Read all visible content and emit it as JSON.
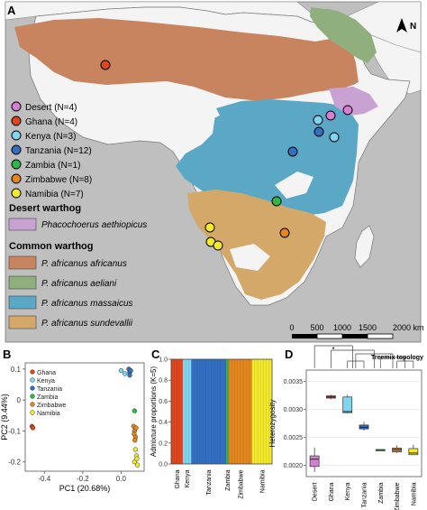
{
  "panels": {
    "a": "A",
    "b": "B",
    "c": "C",
    "d": "D"
  },
  "map": {
    "north_label": "N",
    "populations": [
      {
        "name": "Desert (N=4)",
        "color": "#d67fd3"
      },
      {
        "name": "Ghana (N=4)",
        "color": "#e0451e"
      },
      {
        "name": "Kenya (N=3)",
        "color": "#7fd6f0"
      },
      {
        "name": "Tanzania (N=12)",
        "color": "#3370c4"
      },
      {
        "name": "Zambia (N=1)",
        "color": "#2fb84a"
      },
      {
        "name": "Zimbabwe (N=8)",
        "color": "#e3871e"
      },
      {
        "name": "Namibia (N=7)",
        "color": "#f4ea2c"
      }
    ],
    "desert_heading": "Desert warthog",
    "desert_taxon": {
      "name": "Phacochoerus aethiopicus",
      "color": "#c8a2d2"
    },
    "common_heading": "Common warthog",
    "common_taxa": [
      {
        "name": "P. africanus africanus",
        "color": "#c8845e"
      },
      {
        "name": "P. africanus aeliani",
        "color": "#8fb07e"
      },
      {
        "name": "P. africanus massaicus",
        "color": "#5aa7c6"
      },
      {
        "name": "P. africanus sundevallii",
        "color": "#d4a868"
      }
    ],
    "scale_labels": [
      "0",
      "500",
      "1000",
      "1500",
      "2000 km"
    ]
  },
  "chart_data": [
    {
      "panel": "B",
      "type": "scatter",
      "xlabel": "PC1 (20.68%)",
      "ylabel": "PC2 (9.44%)",
      "xlim": [
        -0.5,
        0.12
      ],
      "ylim": [
        -0.23,
        0.12
      ],
      "xticks": [
        "-0.4",
        "-0.2",
        "0.0"
      ],
      "yticks": [
        "0.1",
        "0",
        "-0.1",
        "-0.2"
      ],
      "legend": [
        "Ghana",
        "Kenya",
        "Tanzania",
        "Zambia",
        "Zimbabwe",
        "Namibia"
      ],
      "series": [
        {
          "name": "Ghana",
          "color": "#e0451e",
          "points": [
            [
              -0.465,
              -0.085
            ],
            [
              -0.46,
              -0.09
            ]
          ]
        },
        {
          "name": "Kenya",
          "color": "#7fd6f0",
          "points": [
            [
              0.0,
              0.095
            ],
            [
              0.02,
              0.085
            ]
          ]
        },
        {
          "name": "Tanzania",
          "color": "#3370c4",
          "points": [
            [
              0.04,
              0.1
            ],
            [
              0.045,
              0.09
            ],
            [
              0.045,
              0.08
            ],
            [
              0.05,
              0.095
            ]
          ]
        },
        {
          "name": "Zambia",
          "color": "#2fb84a",
          "points": [
            [
              0.07,
              -0.035
            ]
          ]
        },
        {
          "name": "Zimbabwe",
          "color": "#e3871e",
          "points": [
            [
              0.065,
              -0.085
            ],
            [
              0.07,
              -0.1
            ],
            [
              0.068,
              -0.11
            ],
            [
              0.075,
              -0.12
            ],
            [
              0.072,
              -0.13
            ],
            [
              0.078,
              -0.09
            ]
          ]
        },
        {
          "name": "Namibia",
          "color": "#f4ea2c",
          "points": [
            [
              0.075,
              -0.16
            ],
            [
              0.08,
              -0.18
            ],
            [
              0.07,
              -0.2
            ],
            [
              0.085,
              -0.21
            ],
            [
              0.082,
              -0.19
            ]
          ]
        }
      ]
    },
    {
      "panel": "C",
      "type": "bar",
      "ylabel": "Admixture proportions (K=5)",
      "ylim": [
        0,
        1
      ],
      "yticks": [
        "0.0",
        "0.2",
        "0.4",
        "0.6",
        "0.8",
        "1.0"
      ],
      "groups": [
        {
          "name": "Ghana",
          "n": 4,
          "color": "#e0451e"
        },
        {
          "name": "Kenya",
          "n": 3,
          "color": "#7fd6f0"
        },
        {
          "name": "Tanzania",
          "n": 12,
          "color": "#3370c4"
        },
        {
          "name": "Zambia",
          "n": 1,
          "color": "#2fb84a"
        },
        {
          "name": "Zimbabwe",
          "n": 8,
          "color": "#e3871e"
        },
        {
          "name": "Namibia",
          "n": 7,
          "color": "#f4ea2c"
        }
      ]
    },
    {
      "panel": "D",
      "type": "box",
      "ylabel": "Heterozygosity",
      "title": "Treemix topology",
      "ylim": [
        0.0018,
        0.0037
      ],
      "yticks": [
        "0.0020",
        "0.0025",
        "0.0030",
        "0.0035"
      ],
      "categories": [
        "Desert",
        "Ghana",
        "Kenya",
        "Tanzania",
        "Zambia",
        "Zimbabwe",
        "Namibia"
      ],
      "boxes": [
        {
          "name": "Desert",
          "color": "#d67fd3",
          "min": 0.00188,
          "q1": 0.00198,
          "median": 0.00211,
          "q3": 0.00217,
          "max": 0.00232
        },
        {
          "name": "Ghana",
          "color": "#e0451e",
          "min": 0.00318,
          "q1": 0.0032,
          "median": 0.00322,
          "q3": 0.00324,
          "max": 0.00326
        },
        {
          "name": "Kenya",
          "color": "#7fd6f0",
          "min": 0.00293,
          "q1": 0.00294,
          "median": 0.00296,
          "q3": 0.00322,
          "max": 0.00326
        },
        {
          "name": "Tanzania",
          "color": "#3370c4",
          "min": 0.00262,
          "q1": 0.00265,
          "median": 0.00268,
          "q3": 0.00272,
          "max": 0.00278
        },
        {
          "name": "Zambia",
          "color": "#2fb84a",
          "min": 0.00228,
          "q1": 0.00228,
          "median": 0.00228,
          "q3": 0.00228,
          "max": 0.00228
        },
        {
          "name": "Zimbabwe",
          "color": "#e3871e",
          "min": 0.00222,
          "q1": 0.00224,
          "median": 0.00228,
          "q3": 0.00231,
          "max": 0.00236
        },
        {
          "name": "Namibia",
          "color": "#f4ea2c",
          "min": 0.00218,
          "q1": 0.00219,
          "median": 0.00222,
          "q3": 0.0023,
          "max": 0.00237
        }
      ]
    }
  ]
}
